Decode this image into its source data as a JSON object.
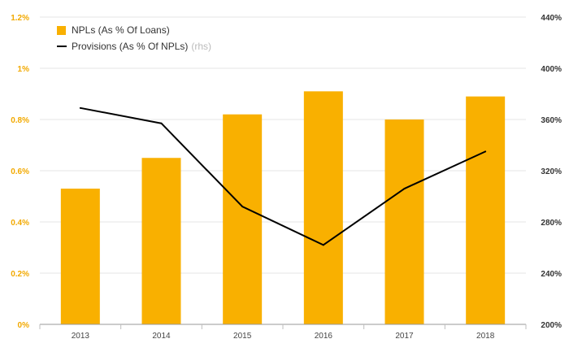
{
  "chart_data": {
    "type": "bar+line",
    "categories": [
      "2013",
      "2014",
      "2015",
      "2016",
      "2017",
      "2018"
    ],
    "series": [
      {
        "name": "NPLs (As % Of Loans)",
        "type": "bar",
        "axis": "left",
        "values": [
          0.53,
          0.65,
          0.82,
          0.91,
          0.8,
          0.89
        ]
      },
      {
        "name": "Provisions (As % Of NPLs)",
        "type": "line",
        "axis": "right",
        "values": [
          369,
          357,
          292,
          262,
          306,
          335
        ]
      }
    ],
    "legend": {
      "bar_label": "NPLs (As % Of Loans)",
      "line_label": "Provisions (As % Of NPLs)",
      "rhs_note": "(rhs)"
    },
    "left_axis": {
      "ylim": [
        0,
        1.2
      ],
      "ticks": [
        0,
        0.2,
        0.4,
        0.6,
        0.8,
        1.0,
        1.2
      ],
      "tick_labels": [
        "0%",
        "0.2%",
        "0.4%",
        "0.6%",
        "0.8%",
        "1%",
        "1.2%"
      ]
    },
    "right_axis": {
      "ylim": [
        200,
        440
      ],
      "ticks": [
        200,
        240,
        280,
        320,
        360,
        400,
        440
      ],
      "tick_labels": [
        "200%",
        "240%",
        "280%",
        "320%",
        "360%",
        "400%",
        "440%"
      ]
    },
    "grid": true,
    "legend_position": "top-left",
    "colors": {
      "bar": "#f9b000",
      "line": "#000000",
      "left_tick": "#f2a900",
      "right_tick": "#333333",
      "grid": "#e6e6e6"
    }
  }
}
